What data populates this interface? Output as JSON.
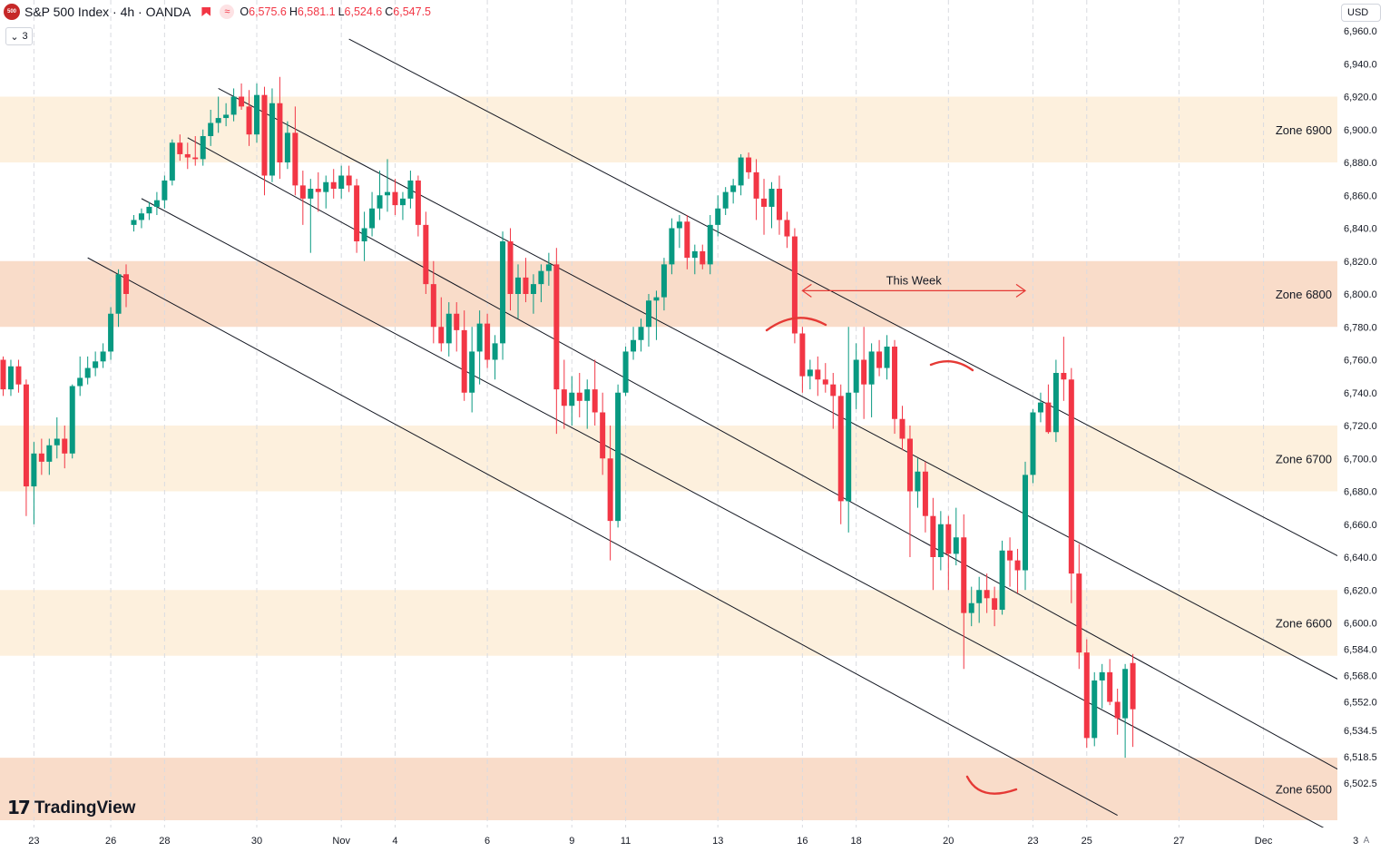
{
  "header": {
    "symbol_badge": "500",
    "title": "S&P 500 Index · 4h · OANDA",
    "ohlc": [
      {
        "key": "O",
        "value": "6,575.6"
      },
      {
        "key": "H",
        "value": "6,581.1"
      },
      {
        "key": "L",
        "value": "6,524.6"
      },
      {
        "key": "C",
        "value": "6,547.5"
      }
    ],
    "indicators_count": "3"
  },
  "currency": "USD",
  "brand": "TradingView",
  "auto_label": "A",
  "colors": {
    "up": "#089981",
    "down": "#f23645",
    "zone_light": "#fdf0dd",
    "zone_dark": "#f9dcc9",
    "annotation": "#e53935"
  },
  "chart_data": {
    "type": "candlestick",
    "title": "S&P 500 Index · 4h · OANDA",
    "y_axis": {
      "ticks": [
        6960.0,
        6940.0,
        6920.0,
        6900.0,
        6880.0,
        6860.0,
        6840.0,
        6820.0,
        6800.0,
        6780.0,
        6760.0,
        6740.0,
        6720.0,
        6700.0,
        6680.0,
        6660.0,
        6640.0,
        6620.0,
        6600.0,
        6584.0,
        6568.0,
        6552.0,
        6534.5,
        6518.5,
        6502.5
      ],
      "tick_labels": [
        "6,960.0",
        "6,940.0",
        "6,920.0",
        "6,900.0",
        "6,880.0",
        "6,860.0",
        "6,840.0",
        "6,820.0",
        "6,800.0",
        "6,780.0",
        "6,760.0",
        "6,740.0",
        "6,720.0",
        "6,700.0",
        "6,680.0",
        "6,660.0",
        "6,640.0",
        "6,620.0",
        "6,600.0",
        "6,584.0",
        "6,568.0",
        "6,552.0",
        "6,534.5",
        "6,518.5",
        "6,502.5"
      ]
    },
    "x_axis": {
      "labels": [
        {
          "bar": 4,
          "label": "23"
        },
        {
          "bar": 14,
          "label": "26"
        },
        {
          "bar": 21,
          "label": "28"
        },
        {
          "bar": 33,
          "label": "30"
        },
        {
          "bar": 44,
          "label": "Nov"
        },
        {
          "bar": 51,
          "label": "4"
        },
        {
          "bar": 63,
          "label": "6"
        },
        {
          "bar": 74,
          "label": "9"
        },
        {
          "bar": 81,
          "label": "11"
        },
        {
          "bar": 93,
          "label": "13"
        },
        {
          "bar": 104,
          "label": "16"
        },
        {
          "bar": 111,
          "label": "18"
        },
        {
          "bar": 123,
          "label": "20"
        },
        {
          "bar": 134,
          "label": "23"
        },
        {
          "bar": 141,
          "label": "25"
        },
        {
          "bar": 153,
          "label": "27"
        },
        {
          "bar": 164,
          "label": "Dec"
        },
        {
          "bar": 176,
          "label": "3"
        }
      ]
    },
    "zones": [
      {
        "label": "Zone 6900",
        "low": 6880,
        "high": 6920,
        "shade": "light"
      },
      {
        "label": "Zone 6800",
        "low": 6780,
        "high": 6820,
        "shade": "dark"
      },
      {
        "label": "Zone 6700",
        "low": 6680,
        "high": 6720,
        "shade": "light"
      },
      {
        "label": "Zone 6600",
        "low": 6580,
        "high": 6620,
        "shade": "light"
      },
      {
        "label": "Zone 6500",
        "low": 6480,
        "high": 6518,
        "shade": "dark"
      }
    ],
    "trendlines": [
      {
        "from": {
          "bar": 45,
          "price": 6955
        },
        "to": {
          "bar": 176,
          "price": 6635
        }
      },
      {
        "from": {
          "bar": 28,
          "price": 6925
        },
        "to": {
          "bar": 176,
          "price": 6560
        }
      },
      {
        "from": {
          "bar": 24,
          "price": 6895
        },
        "to": {
          "bar": 176,
          "price": 6505
        }
      },
      {
        "from": {
          "bar": 18,
          "price": 6858
        },
        "to": {
          "bar": 176,
          "price": 6465
        }
      },
      {
        "from": {
          "bar": 11,
          "price": 6822
        },
        "to": {
          "bar": 145,
          "price": 6483
        }
      }
    ],
    "annotation": {
      "text": "This Week",
      "from_bar": 104,
      "to_bar": 133,
      "price": 6802
    },
    "candles": [
      {
        "o": 6760,
        "h": 6762,
        "l": 6738,
        "c": 6742
      },
      {
        "o": 6742,
        "h": 6760,
        "l": 6738,
        "c": 6756
      },
      {
        "o": 6756,
        "h": 6760,
        "l": 6740,
        "c": 6745
      },
      {
        "o": 6745,
        "h": 6748,
        "l": 6665,
        "c": 6683
      },
      {
        "o": 6683,
        "h": 6710,
        "l": 6660,
        "c": 6703
      },
      {
        "o": 6703,
        "h": 6712,
        "l": 6690,
        "c": 6698
      },
      {
        "o": 6698,
        "h": 6712,
        "l": 6690,
        "c": 6708
      },
      {
        "o": 6708,
        "h": 6725,
        "l": 6700,
        "c": 6712
      },
      {
        "o": 6712,
        "h": 6720,
        "l": 6694,
        "c": 6703
      },
      {
        "o": 6703,
        "h": 6745,
        "l": 6700,
        "c": 6744
      },
      {
        "o": 6744,
        "h": 6762,
        "l": 6738,
        "c": 6749
      },
      {
        "o": 6749,
        "h": 6762,
        "l": 6745,
        "c": 6755
      },
      {
        "o": 6755,
        "h": 6765,
        "l": 6750,
        "c": 6759
      },
      {
        "o": 6759,
        "h": 6770,
        "l": 6755,
        "c": 6765
      },
      {
        "o": 6765,
        "h": 6792,
        "l": 6760,
        "c": 6788
      },
      {
        "o": 6788,
        "h": 6815,
        "l": 6780,
        "c": 6812
      },
      {
        "o": 6812,
        "h": 6818,
        "l": 6792,
        "c": 6800
      },
      {
        "o": 6842,
        "h": 6848,
        "l": 6838,
        "c": 6845
      },
      {
        "o": 6845,
        "h": 6852,
        "l": 6840,
        "c": 6849
      },
      {
        "o": 6849,
        "h": 6856,
        "l": 6845,
        "c": 6853
      },
      {
        "o": 6853,
        "h": 6862,
        "l": 6848,
        "c": 6857
      },
      {
        "o": 6857,
        "h": 6872,
        "l": 6852,
        "c": 6869
      },
      {
        "o": 6869,
        "h": 6894,
        "l": 6866,
        "c": 6892
      },
      {
        "o": 6892,
        "h": 6897,
        "l": 6881,
        "c": 6885
      },
      {
        "o": 6885,
        "h": 6892,
        "l": 6876,
        "c": 6883
      },
      {
        "o": 6883,
        "h": 6896,
        "l": 6878,
        "c": 6882
      },
      {
        "o": 6882,
        "h": 6900,
        "l": 6878,
        "c": 6896
      },
      {
        "o": 6896,
        "h": 6912,
        "l": 6890,
        "c": 6904
      },
      {
        "o": 6904,
        "h": 6920,
        "l": 6898,
        "c": 6907
      },
      {
        "o": 6907,
        "h": 6916,
        "l": 6902,
        "c": 6909
      },
      {
        "o": 6909,
        "h": 6925,
        "l": 6905,
        "c": 6920
      },
      {
        "o": 6920,
        "h": 6928,
        "l": 6912,
        "c": 6914
      },
      {
        "o": 6914,
        "h": 6924,
        "l": 6890,
        "c": 6897
      },
      {
        "o": 6897,
        "h": 6928,
        "l": 6892,
        "c": 6921
      },
      {
        "o": 6921,
        "h": 6926,
        "l": 6860,
        "c": 6872
      },
      {
        "o": 6872,
        "h": 6925,
        "l": 6868,
        "c": 6916
      },
      {
        "o": 6916,
        "h": 6932,
        "l": 6870,
        "c": 6880
      },
      {
        "o": 6880,
        "h": 6905,
        "l": 6876,
        "c": 6898
      },
      {
        "o": 6898,
        "h": 6914,
        "l": 6860,
        "c": 6866
      },
      {
        "o": 6866,
        "h": 6875,
        "l": 6842,
        "c": 6858
      },
      {
        "o": 6858,
        "h": 6870,
        "l": 6825,
        "c": 6864
      },
      {
        "o": 6864,
        "h": 6874,
        "l": 6850,
        "c": 6862
      },
      {
        "o": 6862,
        "h": 6872,
        "l": 6852,
        "c": 6868
      },
      {
        "o": 6868,
        "h": 6876,
        "l": 6858,
        "c": 6864
      },
      {
        "o": 6864,
        "h": 6878,
        "l": 6858,
        "c": 6872
      },
      {
        "o": 6872,
        "h": 6878,
        "l": 6862,
        "c": 6866
      },
      {
        "o": 6866,
        "h": 6870,
        "l": 6825,
        "c": 6832
      },
      {
        "o": 6832,
        "h": 6850,
        "l": 6820,
        "c": 6840
      },
      {
        "o": 6840,
        "h": 6862,
        "l": 6835,
        "c": 6852
      },
      {
        "o": 6852,
        "h": 6875,
        "l": 6845,
        "c": 6860
      },
      {
        "o": 6860,
        "h": 6882,
        "l": 6850,
        "c": 6862
      },
      {
        "o": 6862,
        "h": 6870,
        "l": 6848,
        "c": 6854
      },
      {
        "o": 6854,
        "h": 6862,
        "l": 6845,
        "c": 6858
      },
      {
        "o": 6858,
        "h": 6875,
        "l": 6852,
        "c": 6869
      },
      {
        "o": 6869,
        "h": 6872,
        "l": 6835,
        "c": 6842
      },
      {
        "o": 6842,
        "h": 6850,
        "l": 6800,
        "c": 6806
      },
      {
        "o": 6806,
        "h": 6820,
        "l": 6770,
        "c": 6780
      },
      {
        "o": 6780,
        "h": 6798,
        "l": 6765,
        "c": 6770
      },
      {
        "o": 6770,
        "h": 6795,
        "l": 6762,
        "c": 6788
      },
      {
        "o": 6788,
        "h": 6795,
        "l": 6765,
        "c": 6778
      },
      {
        "o": 6778,
        "h": 6790,
        "l": 6735,
        "c": 6740
      },
      {
        "o": 6740,
        "h": 6780,
        "l": 6728,
        "c": 6765
      },
      {
        "o": 6765,
        "h": 6790,
        "l": 6745,
        "c": 6782
      },
      {
        "o": 6782,
        "h": 6788,
        "l": 6755,
        "c": 6760
      },
      {
        "o": 6760,
        "h": 6775,
        "l": 6748,
        "c": 6770
      },
      {
        "o": 6770,
        "h": 6838,
        "l": 6760,
        "c": 6832
      },
      {
        "o": 6832,
        "h": 6840,
        "l": 6790,
        "c": 6800
      },
      {
        "o": 6800,
        "h": 6818,
        "l": 6785,
        "c": 6810
      },
      {
        "o": 6810,
        "h": 6822,
        "l": 6795,
        "c": 6800
      },
      {
        "o": 6800,
        "h": 6812,
        "l": 6788,
        "c": 6806
      },
      {
        "o": 6806,
        "h": 6818,
        "l": 6795,
        "c": 6814
      },
      {
        "o": 6814,
        "h": 6825,
        "l": 6805,
        "c": 6818
      },
      {
        "o": 6818,
        "h": 6828,
        "l": 6715,
        "c": 6742
      },
      {
        "o": 6742,
        "h": 6760,
        "l": 6718,
        "c": 6732
      },
      {
        "o": 6732,
        "h": 6750,
        "l": 6720,
        "c": 6740
      },
      {
        "o": 6740,
        "h": 6752,
        "l": 6725,
        "c": 6735
      },
      {
        "o": 6735,
        "h": 6748,
        "l": 6718,
        "c": 6742
      },
      {
        "o": 6742,
        "h": 6760,
        "l": 6720,
        "c": 6728
      },
      {
        "o": 6728,
        "h": 6740,
        "l": 6690,
        "c": 6700
      },
      {
        "o": 6700,
        "h": 6720,
        "l": 6638,
        "c": 6662
      },
      {
        "o": 6662,
        "h": 6745,
        "l": 6658,
        "c": 6740
      },
      {
        "o": 6740,
        "h": 6768,
        "l": 6738,
        "c": 6765
      },
      {
        "o": 6765,
        "h": 6780,
        "l": 6760,
        "c": 6772
      },
      {
        "o": 6772,
        "h": 6785,
        "l": 6765,
        "c": 6780
      },
      {
        "o": 6780,
        "h": 6800,
        "l": 6768,
        "c": 6796
      },
      {
        "o": 6796,
        "h": 6802,
        "l": 6772,
        "c": 6798
      },
      {
        "o": 6798,
        "h": 6822,
        "l": 6790,
        "c": 6818
      },
      {
        "o": 6818,
        "h": 6846,
        "l": 6812,
        "c": 6840
      },
      {
        "o": 6840,
        "h": 6848,
        "l": 6828,
        "c": 6844
      },
      {
        "o": 6844,
        "h": 6848,
        "l": 6815,
        "c": 6822
      },
      {
        "o": 6822,
        "h": 6830,
        "l": 6812,
        "c": 6826
      },
      {
        "o": 6826,
        "h": 6830,
        "l": 6815,
        "c": 6818
      },
      {
        "o": 6818,
        "h": 6848,
        "l": 6812,
        "c": 6842
      },
      {
        "o": 6842,
        "h": 6860,
        "l": 6835,
        "c": 6852
      },
      {
        "o": 6852,
        "h": 6865,
        "l": 6848,
        "c": 6862
      },
      {
        "o": 6862,
        "h": 6870,
        "l": 6855,
        "c": 6866
      },
      {
        "o": 6866,
        "h": 6885,
        "l": 6860,
        "c": 6883
      },
      {
        "o": 6883,
        "h": 6886,
        "l": 6870,
        "c": 6874
      },
      {
        "o": 6874,
        "h": 6882,
        "l": 6845,
        "c": 6858
      },
      {
        "o": 6858,
        "h": 6870,
        "l": 6836,
        "c": 6853
      },
      {
        "o": 6853,
        "h": 6868,
        "l": 6840,
        "c": 6864
      },
      {
        "o": 6864,
        "h": 6872,
        "l": 6836,
        "c": 6845
      },
      {
        "o": 6845,
        "h": 6850,
        "l": 6828,
        "c": 6835
      },
      {
        "o": 6835,
        "h": 6840,
        "l": 6770,
        "c": 6776
      },
      {
        "o": 6776,
        "h": 6780,
        "l": 6740,
        "c": 6750
      },
      {
        "o": 6750,
        "h": 6760,
        "l": 6742,
        "c": 6754
      },
      {
        "o": 6754,
        "h": 6762,
        "l": 6738,
        "c": 6748
      },
      {
        "o": 6748,
        "h": 6758,
        "l": 6740,
        "c": 6745
      },
      {
        "o": 6745,
        "h": 6752,
        "l": 6718,
        "c": 6738
      },
      {
        "o": 6738,
        "h": 6745,
        "l": 6660,
        "c": 6674
      },
      {
        "o": 6674,
        "h": 6780,
        "l": 6655,
        "c": 6740
      },
      {
        "o": 6740,
        "h": 6770,
        "l": 6730,
        "c": 6760
      },
      {
        "o": 6760,
        "h": 6780,
        "l": 6724,
        "c": 6745
      },
      {
        "o": 6745,
        "h": 6770,
        "l": 6725,
        "c": 6765
      },
      {
        "o": 6765,
        "h": 6772,
        "l": 6750,
        "c": 6755
      },
      {
        "o": 6755,
        "h": 6775,
        "l": 6748,
        "c": 6768
      },
      {
        "o": 6768,
        "h": 6772,
        "l": 6715,
        "c": 6724
      },
      {
        "o": 6724,
        "h": 6732,
        "l": 6705,
        "c": 6712
      },
      {
        "o": 6712,
        "h": 6720,
        "l": 6640,
        "c": 6680
      },
      {
        "o": 6680,
        "h": 6700,
        "l": 6670,
        "c": 6692
      },
      {
        "o": 6692,
        "h": 6698,
        "l": 6655,
        "c": 6665
      },
      {
        "o": 6665,
        "h": 6676,
        "l": 6620,
        "c": 6640
      },
      {
        "o": 6640,
        "h": 6668,
        "l": 6632,
        "c": 6660
      },
      {
        "o": 6660,
        "h": 6665,
        "l": 6620,
        "c": 6642
      },
      {
        "o": 6642,
        "h": 6670,
        "l": 6635,
        "c": 6652
      },
      {
        "o": 6652,
        "h": 6666,
        "l": 6572,
        "c": 6606
      },
      {
        "o": 6606,
        "h": 6622,
        "l": 6598,
        "c": 6612
      },
      {
        "o": 6612,
        "h": 6628,
        "l": 6600,
        "c": 6620
      },
      {
        "o": 6620,
        "h": 6630,
        "l": 6606,
        "c": 6615
      },
      {
        "o": 6615,
        "h": 6622,
        "l": 6598,
        "c": 6608
      },
      {
        "o": 6608,
        "h": 6650,
        "l": 6605,
        "c": 6644
      },
      {
        "o": 6644,
        "h": 6652,
        "l": 6622,
        "c": 6638
      },
      {
        "o": 6638,
        "h": 6645,
        "l": 6618,
        "c": 6632
      },
      {
        "o": 6632,
        "h": 6698,
        "l": 6620,
        "c": 6690
      },
      {
        "o": 6690,
        "h": 6730,
        "l": 6685,
        "c": 6728
      },
      {
        "o": 6728,
        "h": 6740,
        "l": 6722,
        "c": 6734
      },
      {
        "o": 6734,
        "h": 6745,
        "l": 6715,
        "c": 6716
      },
      {
        "o": 6716,
        "h": 6760,
        "l": 6710,
        "c": 6752
      },
      {
        "o": 6752,
        "h": 6774,
        "l": 6735,
        "c": 6748
      },
      {
        "o": 6748,
        "h": 6755,
        "l": 6612,
        "c": 6630
      },
      {
        "o": 6630,
        "h": 6648,
        "l": 6572,
        "c": 6582
      },
      {
        "o": 6582,
        "h": 6590,
        "l": 6524,
        "c": 6530
      },
      {
        "o": 6530,
        "h": 6570,
        "l": 6525,
        "c": 6565
      },
      {
        "o": 6565,
        "h": 6575,
        "l": 6548,
        "c": 6570
      },
      {
        "o": 6570,
        "h": 6578,
        "l": 6550,
        "c": 6552
      },
      {
        "o": 6552,
        "h": 6560,
        "l": 6532,
        "c": 6542
      },
      {
        "o": 6542,
        "h": 6575,
        "l": 6518,
        "c": 6572
      },
      {
        "o": 6575.6,
        "h": 6581.1,
        "l": 6524.6,
        "c": 6547.5
      }
    ]
  }
}
